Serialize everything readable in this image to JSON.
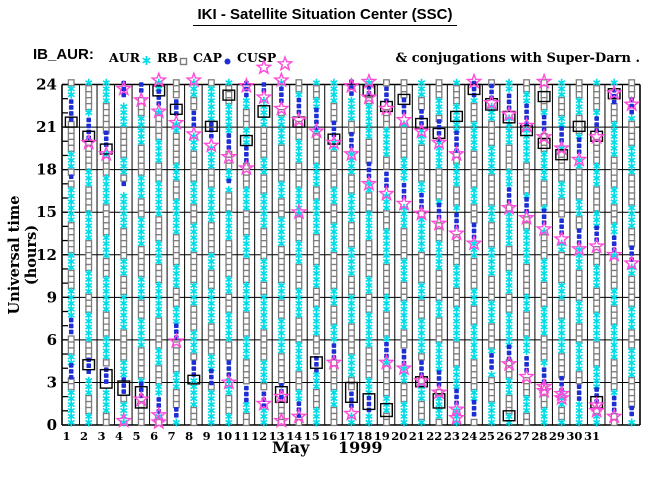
{
  "header": {
    "title": "IKI - Satellite Situation Center (SSC)"
  },
  "legend": {
    "prefix": "IB_AUR:",
    "items": [
      {
        "label": "AUR",
        "marker": "cyan-asterisk",
        "color": "#00dde8"
      },
      {
        "label": "RB",
        "marker": "gray-open-square",
        "color": "#7d7d7d"
      },
      {
        "label": "CAP",
        "marker": "blue-filled-dot",
        "color": "#1c2fd4"
      },
      {
        "label": "CUSP",
        "marker": "magenta-open-star",
        "color": "#ff4ada"
      }
    ],
    "note": "& conjugations with Super-Darn ."
  },
  "chart_data": {
    "type": "scatter",
    "title": "IKI - Satellite Situation Center (SSC)",
    "ylabel": "Universal time (hours)",
    "xlabel_month": "May",
    "xlabel_year": "1999",
    "ylim": [
      0,
      24
    ],
    "yticks": [
      0,
      3,
      6,
      9,
      12,
      15,
      18,
      21,
      24
    ],
    "y_minor_step": 1,
    "xlim_days": [
      1,
      31
    ],
    "grid": "on",
    "legend_position": "top",
    "colors": {
      "AUR": "#00dde8",
      "RB": "#7d7d7d",
      "CAP": "#1c2fd4",
      "CUSP": "#ff4ada",
      "conjunction_box": "#000000",
      "grid": "#000000"
    },
    "marker_pitch_hours": 0.42,
    "region_cycle_hours": 3.6,
    "aur_run_hours": 1.9,
    "keys": {
      "l": "day label (May 1999)",
      "p": "orbit phase offset (hours) for alternating AUR/RB runs",
      "c": "CAP intervals [start,end] in hours UT",
      "s": "CUSP crossing times (hours UT)",
      "b": "Super-Darn conjunction boxes [start,end] hours UT"
    },
    "days": [
      {
        "l": "1",
        "p": 0.0,
        "c": [
          [
            22.8,
            21.4
          ],
          [
            17.5,
            17.1
          ],
          [
            7.4,
            6.4
          ],
          [
            4.2,
            3.3
          ]
        ],
        "s": [],
        "b": [
          [
            21.7,
            21.0
          ]
        ]
      },
      {
        "l": "2",
        "p": 1.4,
        "c": [
          [
            21.5,
            20.2
          ],
          [
            4.6,
            3.6
          ]
        ],
        "s": [
          19.9
        ],
        "b": [
          [
            20.7,
            20.0
          ],
          [
            4.6,
            3.9
          ]
        ]
      },
      {
        "l": "3",
        "p": 2.7,
        "c": [
          [
            20.6,
            19.4
          ],
          [
            3.9,
            2.7
          ]
        ],
        "s": [
          19.1
        ],
        "b": [
          [
            19.8,
            19.1
          ],
          [
            3.9,
            2.6
          ]
        ]
      },
      {
        "l": "4",
        "p": 0.5,
        "c": [
          [
            24.1,
            22.9
          ],
          [
            17.0,
            16.6
          ],
          [
            3.2,
            2.1
          ]
        ],
        "s": [
          23.7,
          0.3
        ],
        "b": [
          [
            3.1,
            2.1
          ]
        ]
      },
      {
        "l": "5",
        "p": 1.9,
        "c": [
          [
            24.0,
            23.3
          ],
          [
            2.9,
            1.9
          ]
        ],
        "s": [
          22.9,
          1.8
        ],
        "b": [
          [
            2.7,
            1.2
          ]
        ]
      },
      {
        "l": "6",
        "p": 3.2,
        "c": [
          [
            23.5,
            22.4
          ],
          [
            1.8,
            0.9
          ]
        ],
        "s": [
          24.3,
          22.1,
          0.7,
          0.2
        ],
        "b": [
          [
            23.9,
            23.2
          ]
        ]
      },
      {
        "l": "7",
        "p": 1.0,
        "c": [
          [
            22.8,
            21.6
          ],
          [
            7.0,
            6.1
          ],
          [
            1.1,
            0.3
          ]
        ],
        "s": [
          21.3,
          5.9
        ],
        "b": [
          [
            22.6,
            21.9
          ]
        ]
      },
      {
        "l": "8",
        "p": 2.3,
        "c": [
          [
            22.0,
            20.8
          ],
          [
            4.4,
            3.5
          ]
        ],
        "s": [
          24.3,
          20.5
        ],
        "b": [
          [
            3.5,
            2.9
          ]
        ]
      },
      {
        "l": "9",
        "p": 0.1,
        "c": [
          [
            21.2,
            20.0
          ],
          [
            3.8,
            2.9
          ]
        ],
        "s": [
          19.7
        ],
        "b": [
          [
            21.4,
            20.7
          ]
        ]
      },
      {
        "l": "10",
        "p": 1.5,
        "c": [
          [
            20.4,
            19.2
          ],
          [
            17.2,
            16.8
          ],
          [
            4.4,
            3.3
          ]
        ],
        "s": [
          18.9,
          3.0
        ],
        "b": [
          [
            23.6,
            22.9
          ]
        ]
      },
      {
        "l": "11",
        "p": 2.8,
        "c": [
          [
            24.1,
            23.1
          ],
          [
            19.5,
            18.4
          ],
          [
            2.6,
            1.7
          ]
        ],
        "s": [
          23.9,
          18.1
        ],
        "b": [
          [
            20.4,
            19.7
          ]
        ]
      },
      {
        "l": "12",
        "p": 0.6,
        "c": [
          [
            24.0,
            23.3
          ],
          [
            2.2,
            1.2
          ]
        ],
        "s": [
          25.2,
          23.1,
          1.5
        ],
        "b": [
          [
            22.5,
            21.7
          ]
        ]
      },
      {
        "l": "13",
        "p": 2.0,
        "c": [
          [
            23.7,
            22.5
          ],
          [
            2.8,
            1.6
          ]
        ],
        "s": [
          24.3,
          22.3,
          2.0,
          0.3
        ],
        "b": [
          [
            2.7,
            1.6
          ]
        ]
      },
      {
        "l": "14",
        "p": 3.3,
        "c": [
          [
            22.9,
            21.7
          ],
          [
            1.5,
            0.6
          ]
        ],
        "s": [
          21.5,
          15.0,
          0.6
        ],
        "b": [
          [
            21.7,
            21.0
          ]
        ]
      },
      {
        "l": "15",
        "p": 1.1,
        "c": [
          [
            22.2,
            20.9
          ],
          [
            4.7,
            3.8
          ]
        ],
        "s": [
          20.7
        ],
        "b": [
          [
            4.8,
            4.0
          ]
        ]
      },
      {
        "l": "16",
        "p": 2.4,
        "c": [
          [
            21.3,
            20.1
          ],
          [
            5.6,
            4.6
          ]
        ],
        "s": [
          19.9,
          4.4
        ],
        "b": [
          [
            20.5,
            19.8
          ]
        ]
      },
      {
        "l": "17",
        "p": 0.2,
        "c": [
          [
            24.2,
            23.2
          ],
          [
            20.5,
            19.3
          ],
          [
            2.2,
            1.0
          ]
        ],
        "s": [
          23.9,
          19.1,
          0.8
        ],
        "b": [
          [
            3.0,
            1.6
          ]
        ]
      },
      {
        "l": "18",
        "p": 1.6,
        "c": [
          [
            23.8,
            23.0
          ],
          [
            18.4,
            17.3
          ],
          [
            1.9,
            1.0
          ]
        ],
        "s": [
          24.2,
          23.1,
          17.0
        ],
        "b": [
          [
            23.9,
            23.2
          ],
          [
            2.2,
            1.1
          ]
        ]
      },
      {
        "l": "19",
        "p": 2.9,
        "c": [
          [
            23.7,
            22.5
          ],
          [
            17.7,
            16.6
          ],
          [
            5.7,
            4.7
          ]
        ],
        "s": [
          22.3,
          16.3,
          4.4
        ],
        "b": [
          [
            22.8,
            22.1
          ],
          [
            1.5,
            0.6
          ]
        ]
      },
      {
        "l": "20",
        "p": 0.7,
        "c": [
          [
            22.9,
            21.7
          ],
          [
            16.9,
            15.8
          ],
          [
            5.2,
            4.2
          ]
        ],
        "s": [
          21.5,
          15.6,
          4.0
        ],
        "b": [
          [
            23.3,
            22.6
          ]
        ]
      },
      {
        "l": "21",
        "p": 2.1,
        "c": [
          [
            22.1,
            20.9
          ],
          [
            16.2,
            15.1
          ],
          [
            4.4,
            3.4
          ]
        ],
        "s": [
          20.7,
          14.9,
          3.1
        ],
        "b": [
          [
            21.6,
            20.9
          ],
          [
            3.4,
            2.7
          ]
        ]
      },
      {
        "l": "22",
        "p": 3.4,
        "c": [
          [
            21.4,
            20.1
          ],
          [
            15.5,
            14.4
          ],
          [
            3.7,
            2.6
          ]
        ],
        "s": [
          19.9,
          14.2,
          2.3
        ],
        "b": [
          [
            20.9,
            20.2
          ],
          [
            2.2,
            1.2
          ]
        ]
      },
      {
        "l": "23",
        "p": 1.2,
        "c": [
          [
            20.6,
            19.3
          ],
          [
            14.8,
            13.7
          ],
          [
            2.4,
            1.3
          ]
        ],
        "s": [
          19.1,
          13.5,
          1.1,
          0.5
        ],
        "b": [
          [
            22.1,
            21.4
          ]
        ]
      },
      {
        "l": "24",
        "p": 2.5,
        "c": [
          [
            24.1,
            23.0
          ],
          [
            14.1,
            13.0
          ],
          [
            1.6,
            0.7
          ]
        ],
        "s": [
          24.2,
          12.8
        ],
        "b": [
          [
            24.0,
            23.3
          ]
        ]
      },
      {
        "l": "25",
        "p": 0.3,
        "c": [
          [
            23.9,
            22.9
          ],
          [
            4.9,
            3.9
          ]
        ],
        "s": [
          22.7
        ],
        "b": [
          [
            23.0,
            22.2
          ]
        ]
      },
      {
        "l": "26",
        "p": 1.7,
        "c": [
          [
            23.2,
            22.1
          ],
          [
            16.6,
            15.5
          ],
          [
            5.5,
            4.5
          ]
        ],
        "s": [
          21.9,
          15.3,
          4.3
        ],
        "b": [
          [
            22.1,
            21.3
          ],
          [
            1.0,
            0.3
          ]
        ]
      },
      {
        "l": "27",
        "p": 3.0,
        "c": [
          [
            22.5,
            21.2
          ],
          [
            15.9,
            14.8
          ],
          [
            4.7,
            3.6
          ]
        ],
        "s": [
          21.1,
          14.6,
          3.4
        ],
        "b": [
          [
            21.1,
            20.4
          ]
        ]
      },
      {
        "l": "28",
        "p": 0.8,
        "c": [
          [
            21.7,
            20.5
          ],
          [
            15.1,
            14.0
          ],
          [
            3.9,
            2.9
          ]
        ],
        "s": [
          24.2,
          20.3,
          13.8,
          2.7,
          2.4
        ],
        "b": [
          [
            23.5,
            22.8
          ],
          [
            20.2,
            19.5
          ]
        ]
      },
      {
        "l": "29",
        "p": 2.2,
        "c": [
          [
            20.9,
            19.7
          ],
          [
            14.4,
            13.3
          ],
          [
            3.3,
            2.4
          ]
        ],
        "s": [
          19.5,
          13.1,
          2.2,
          1.9
        ],
        "b": [
          [
            19.4,
            18.7
          ]
        ]
      },
      {
        "l": "30",
        "p": 3.5,
        "c": [
          [
            20.1,
            18.9
          ],
          [
            13.7,
            12.6
          ],
          [
            2.7,
            1.8
          ]
        ],
        "s": [
          18.7,
          12.4
        ],
        "b": [
          [
            21.4,
            20.7
          ]
        ]
      },
      {
        "l": "31",
        "p": 1.3,
        "c": [
          [
            21.6,
            20.4
          ],
          [
            13.9,
            12.8
          ],
          [
            2.5,
            1.5
          ]
        ],
        "s": [
          20.3,
          12.6,
          1.4,
          1.0
        ],
        "b": [
          [
            20.7,
            20.0
          ],
          [
            2.0,
            1.2
          ]
        ]
      },
      {
        "l": "",
        "p": 2.6,
        "c": [
          [
            23.6,
            22.6
          ],
          [
            13.2,
            12.1
          ],
          [
            1.9,
            1.0
          ]
        ],
        "s": [
          23.4,
          12.0,
          0.6
        ],
        "b": [
          [
            23.7,
            23.0
          ]
        ]
      },
      {
        "l": "",
        "p": 0.4,
        "c": [
          [
            22.9,
            21.8
          ],
          [
            12.5,
            11.5
          ],
          [
            1.2,
            0.4
          ]
        ],
        "s": [
          22.6,
          11.4
        ],
        "b": []
      }
    ]
  }
}
